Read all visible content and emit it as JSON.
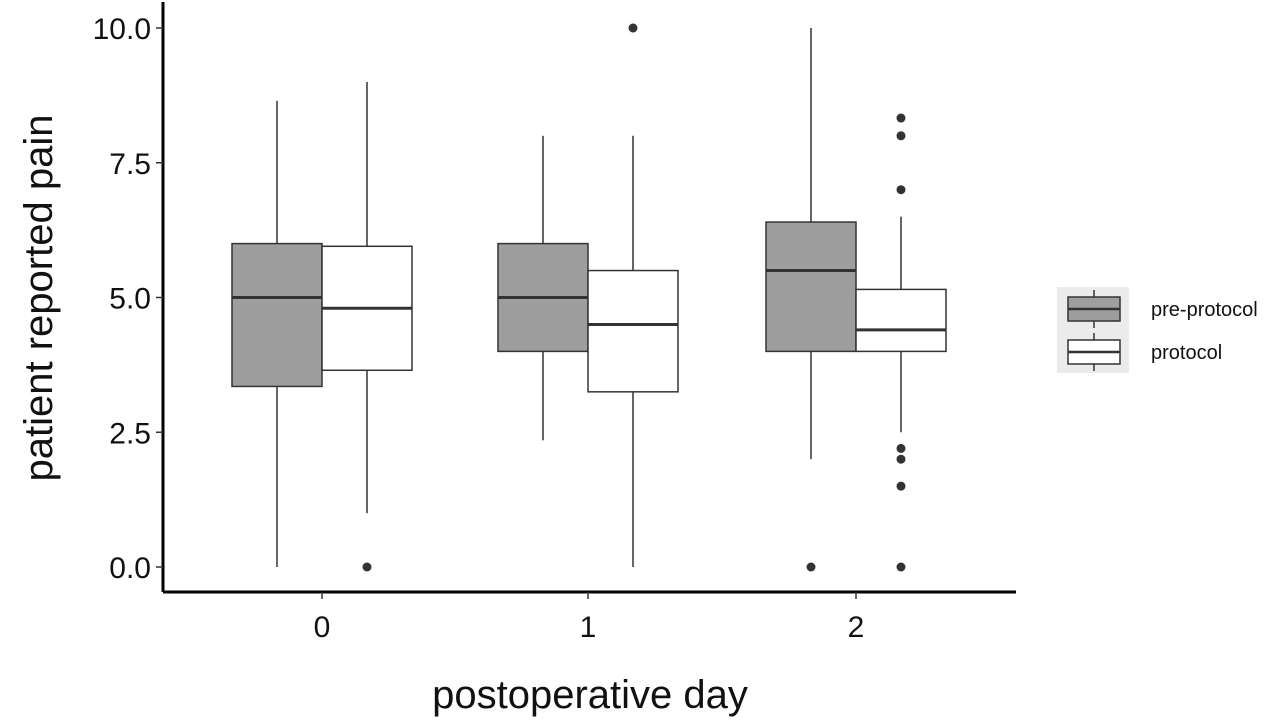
{
  "chart_data": {
    "type": "box",
    "title": "",
    "xlabel": "postoperative day",
    "ylabel": "patient reported pain",
    "categories": [
      "0",
      "1",
      "2"
    ],
    "ylim": [
      -0.45,
      10.5
    ],
    "yticks": [
      0.0,
      2.5,
      5.0,
      7.5,
      10.0
    ],
    "ytick_labels": [
      "0.0",
      "2.5",
      "5.0",
      "7.5",
      "10.0"
    ],
    "grid": false,
    "legend_position": "right",
    "series": [
      {
        "name": "pre-protocol",
        "fill": "#9e9e9e",
        "boxes": [
          {
            "category": "0",
            "whisker_low": 0.0,
            "q1": 3.35,
            "median": 5.0,
            "q3": 6.0,
            "whisker_high": 8.65,
            "outliers": []
          },
          {
            "category": "1",
            "whisker_low": 2.35,
            "q1": 4.0,
            "median": 5.0,
            "q3": 6.0,
            "whisker_high": 8.0,
            "outliers": []
          },
          {
            "category": "2",
            "whisker_low": 2.0,
            "q1": 4.0,
            "median": 5.5,
            "q3": 6.4,
            "whisker_high": 10.0,
            "outliers": [
              0.0
            ]
          }
        ]
      },
      {
        "name": "protocol",
        "fill": "#ffffff",
        "boxes": [
          {
            "category": "0",
            "whisker_low": 1.0,
            "q1": 3.65,
            "median": 4.8,
            "q3": 5.95,
            "whisker_high": 9.0,
            "outliers": [
              0.0
            ]
          },
          {
            "category": "1",
            "whisker_low": 0.0,
            "q1": 3.25,
            "median": 4.5,
            "q3": 5.5,
            "whisker_high": 8.0,
            "outliers": [
              10.0
            ]
          },
          {
            "category": "2",
            "whisker_low": 2.5,
            "q1": 4.0,
            "median": 4.4,
            "q3": 5.15,
            "whisker_high": 6.5,
            "outliers": [
              0.0,
              1.5,
              2.0,
              2.2,
              7.0,
              8.0,
              8.33
            ]
          }
        ]
      }
    ]
  }
}
